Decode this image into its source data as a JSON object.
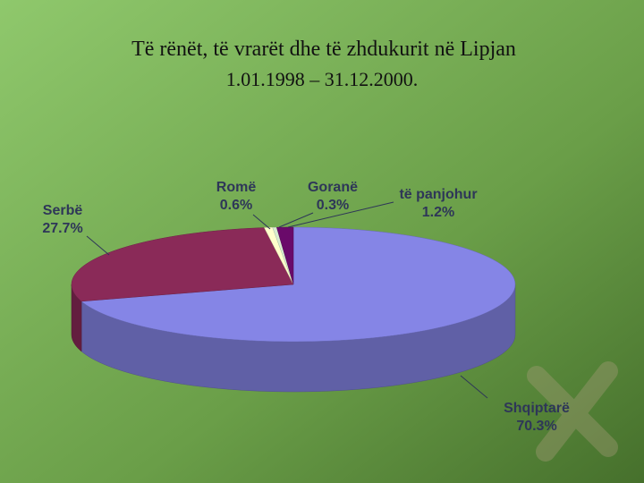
{
  "chart_data": {
    "type": "pie",
    "title": "Të rënët, të vrarët dhe të zhdukurit në Lipjan",
    "subtitle": "1.01.1998 – 31.12.2000.",
    "categories": [
      "Shqiptarë",
      "Serbë",
      "Romë",
      "Goranë",
      "të panjohur"
    ],
    "values": [
      70.3,
      27.7,
      0.6,
      0.3,
      1.2
    ],
    "value_labels": [
      "70.3%",
      "27.7%",
      "0.6%",
      "0.3%",
      "1.2%"
    ],
    "colors": [
      "#8585e6",
      "#8a2a58",
      "#ffffcc",
      "#d8ecd0",
      "#6a0a6a"
    ]
  }
}
